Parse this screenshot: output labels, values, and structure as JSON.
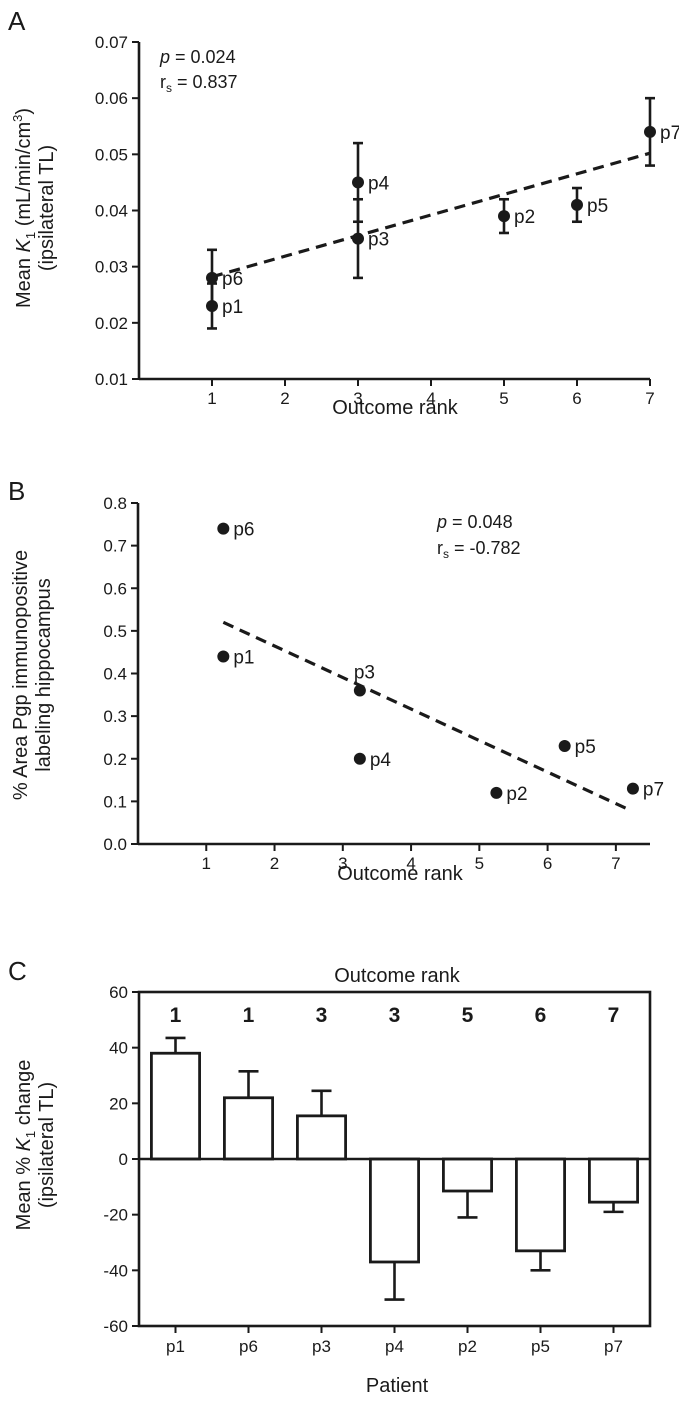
{
  "chart_data": [
    {
      "panel": "A",
      "type": "scatter",
      "xlabel": "Outcome rank",
      "ylabel_line1_pre": "Mean ",
      "ylabel_line1_k": "K",
      "ylabel_line1_sub": "1",
      "ylabel_line1_post": " (mL/min/cm",
      "ylabel_line1_sup": "3",
      "ylabel_line1_end": ")",
      "ylabel_line2": "(ipsilateral TL)",
      "xticks": [
        "1",
        "2",
        "3",
        "4",
        "5",
        "6",
        "7"
      ],
      "yticks": [
        "0.01",
        "0.02",
        "0.03",
        "0.04",
        "0.05",
        "0.06",
        "0.07"
      ],
      "xlim": [
        0,
        7
      ],
      "ylim": [
        0.01,
        0.07
      ],
      "points": [
        {
          "label": "p1",
          "x": 1,
          "y": 0.023,
          "err": 0.004
        },
        {
          "label": "p6",
          "x": 1,
          "y": 0.028,
          "err": 0.005
        },
        {
          "label": "p3",
          "x": 3,
          "y": 0.035,
          "err": 0.007
        },
        {
          "label": "p4",
          "x": 3,
          "y": 0.045,
          "err": 0.007
        },
        {
          "label": "p2",
          "x": 5,
          "y": 0.039,
          "err": 0.003
        },
        {
          "label": "p5",
          "x": 6,
          "y": 0.041,
          "err": 0.003
        },
        {
          "label": "p7",
          "x": 7,
          "y": 0.054,
          "err": 0.006
        }
      ],
      "fit_line": {
        "x": [
          1,
          7
        ],
        "y": [
          0.0282,
          0.0502
        ]
      },
      "stats": {
        "p_label": "p",
        "p_text": " = 0.024",
        "r_label": "r",
        "r_sub": "s",
        "r_text": " = 0.837"
      }
    },
    {
      "panel": "B",
      "type": "scatter",
      "xlabel": "Outcome rank",
      "ylabel_line1": "% Area Pgp immunopositive",
      "ylabel_line2": "labeling hippocampus",
      "xticks": [
        "1",
        "2",
        "3",
        "4",
        "5",
        "6",
        "7"
      ],
      "yticks": [
        "0.0",
        "0.1",
        "0.2",
        "0.3",
        "0.4",
        "0.5",
        "0.6",
        "0.7",
        "0.8"
      ],
      "xlim": [
        0,
        7.5
      ],
      "ylim": [
        0,
        0.8
      ],
      "points": [
        {
          "label": "p6",
          "x": 1.25,
          "y": 0.74
        },
        {
          "label": "p1",
          "x": 1.25,
          "y": 0.44
        },
        {
          "label": "p3",
          "x": 3.25,
          "y": 0.36
        },
        {
          "label": "p4",
          "x": 3.25,
          "y": 0.2
        },
        {
          "label": "p2",
          "x": 5.25,
          "y": 0.12
        },
        {
          "label": "p5",
          "x": 6.25,
          "y": 0.23
        },
        {
          "label": "p7",
          "x": 7.25,
          "y": 0.13
        }
      ],
      "fit_line": {
        "x": [
          1.25,
          7.2
        ],
        "y": [
          0.52,
          0.08
        ]
      },
      "stats": {
        "p_label": "p",
        "p_text": " = 0.048",
        "r_label": "r",
        "r_sub": "s",
        "r_text": " = -0.782"
      }
    },
    {
      "panel": "C",
      "type": "bar",
      "title": "Outcome rank",
      "xlabel": "Patient",
      "ylabel_line1_pre": "Mean % ",
      "ylabel_line1_k": "K",
      "ylabel_line1_sub": "1",
      "ylabel_line1_post": " change",
      "ylabel_line2": "(ipsilateral TL)",
      "categories": [
        "p1",
        "p6",
        "p3",
        "p4",
        "p2",
        "p5",
        "p7"
      ],
      "ranks": [
        "1",
        "1",
        "3",
        "3",
        "5",
        "6",
        "7"
      ],
      "values": [
        38,
        22,
        15.5,
        -37,
        -11.5,
        -33,
        -15.5
      ],
      "errors": [
        5.5,
        9.5,
        9,
        13.5,
        9.5,
        7,
        3.5
      ],
      "yticks": [
        "60",
        "40",
        "20",
        "0",
        "-20",
        "-40",
        "-60"
      ],
      "ylim": [
        -60,
        60
      ]
    }
  ]
}
